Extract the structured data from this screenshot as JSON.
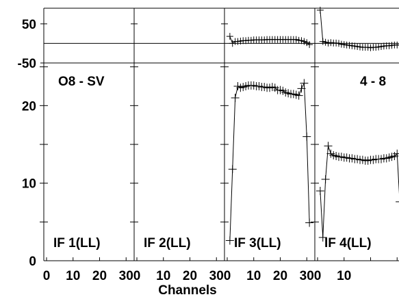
{
  "chart_data": {
    "type": "line",
    "title_left": "O8 - SV",
    "title_right": "4 - 8",
    "xlabel": "Channels",
    "ylabel": "",
    "x_ticks": [
      "0",
      "10",
      "20",
      "30"
    ],
    "y_ticks_main": [
      "0",
      "10",
      "20"
    ],
    "y_ticks_phase": [
      "50",
      "-50"
    ],
    "xlim": [
      0,
      32
    ],
    "ylim": [
      0,
      25.5
    ],
    "phase_ylim": [
      -50,
      90
    ],
    "grid": false,
    "panels": [
      {
        "label": "IF 1(LL)",
        "amplitude": [],
        "phase": []
      },
      {
        "label": "IF 2(LL)",
        "amplitude": [],
        "phase": []
      },
      {
        "label": "IF 3(LL)",
        "channels": [
          1,
          2,
          3,
          4,
          5,
          6,
          7,
          8,
          9,
          10,
          11,
          12,
          13,
          14,
          15,
          16,
          17,
          18,
          19,
          20,
          21,
          22,
          23,
          24,
          25,
          26,
          27,
          28,
          29,
          30,
          31
        ],
        "amplitude": [
          2.6,
          11.8,
          21.0,
          22.5,
          22.3,
          22.4,
          22.5,
          22.6,
          22.6,
          22.6,
          22.5,
          22.5,
          22.4,
          22.4,
          22.3,
          22.3,
          22.4,
          22.3,
          22.0,
          22.0,
          21.9,
          21.7,
          21.6,
          21.5,
          21.5,
          21.4,
          21.3,
          22.2,
          22.9,
          16.0,
          4.9
        ],
        "phase": [
          18,
          0,
          5,
          5,
          6,
          7,
          7,
          8,
          8,
          9,
          9,
          9,
          9,
          9,
          10,
          10,
          10,
          10,
          10,
          10,
          10,
          10,
          10,
          10,
          10,
          10,
          8,
          7,
          5,
          2,
          -3
        ]
      },
      {
        "label": "IF 4(LL)",
        "channels": [
          1,
          2,
          3,
          4,
          5,
          6,
          7,
          8,
          9,
          10,
          11,
          12,
          13,
          14,
          15,
          16,
          17,
          18,
          19,
          20,
          21,
          22,
          23,
          24,
          25,
          26,
          27,
          28,
          29,
          30,
          31
        ],
        "amplitude": [
          9.0,
          3.0,
          10.5,
          14.8,
          13.8,
          13.6,
          13.5,
          13.4,
          13.4,
          13.3,
          13.3,
          13.2,
          13.2,
          13.1,
          13.1,
          13.0,
          13.0,
          12.9,
          12.9,
          13.0,
          13.0,
          13.1,
          13.1,
          13.1,
          13.2,
          13.2,
          13.3,
          13.4,
          13.5,
          13.8,
          7.6
        ],
        "phase": [
          85,
          5,
          3,
          1,
          2,
          1,
          1,
          0,
          -2,
          -3,
          -4,
          -5,
          -6,
          -7,
          -8,
          -9,
          -10,
          -10,
          -10,
          -11,
          -10,
          -10,
          -9,
          -8,
          -7,
          -6,
          -6,
          -5,
          -4,
          -4,
          -4
        ]
      }
    ]
  }
}
